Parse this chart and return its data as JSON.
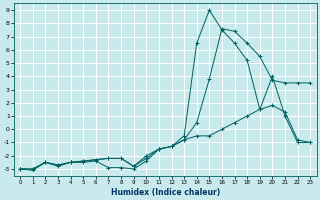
{
  "xlabel": "Humidex (Indice chaleur)",
  "xlim": [
    -0.5,
    23.5
  ],
  "ylim": [
    -3.5,
    9.5
  ],
  "xticks": [
    0,
    1,
    2,
    3,
    4,
    5,
    6,
    7,
    8,
    9,
    10,
    11,
    12,
    13,
    14,
    15,
    16,
    17,
    18,
    19,
    20,
    21,
    22,
    23
  ],
  "yticks": [
    -3,
    -2,
    -1,
    0,
    1,
    2,
    3,
    4,
    5,
    6,
    7,
    8,
    9
  ],
  "background_color": "#c8eaec",
  "grid_color": "#ffffff",
  "line_color": "#006060",
  "line1_x": [
    0,
    1,
    2,
    3,
    4,
    5,
    6,
    7,
    8,
    9,
    10,
    11,
    12,
    13,
    14,
    15,
    16,
    17,
    18,
    19,
    20,
    21,
    22,
    23
  ],
  "line1_y": [
    -3.0,
    -3.1,
    -2.5,
    -2.8,
    -2.5,
    -2.5,
    -2.4,
    -2.9,
    -2.9,
    -3.0,
    -2.4,
    -1.5,
    -1.3,
    -0.5,
    6.5,
    9.0,
    7.5,
    6.5,
    5.2,
    1.5,
    4.0,
    1.0,
    -1.0,
    -1.0
  ],
  "line2_x": [
    0,
    1,
    2,
    3,
    4,
    5,
    6,
    7,
    8,
    9,
    10,
    11,
    12,
    13,
    14,
    15,
    16,
    17,
    18,
    19,
    20,
    21,
    22,
    23
  ],
  "line2_y": [
    -3.0,
    -3.0,
    -2.5,
    -2.7,
    -2.5,
    -2.4,
    -2.3,
    -2.2,
    -2.2,
    -2.8,
    -2.2,
    -1.5,
    -1.3,
    -0.8,
    0.5,
    3.8,
    7.6,
    7.4,
    6.5,
    5.5,
    3.7,
    3.5,
    3.5,
    3.5
  ],
  "line3_x": [
    0,
    1,
    2,
    3,
    4,
    5,
    6,
    7,
    8,
    9,
    10,
    11,
    12,
    13,
    14,
    15,
    16,
    17,
    18,
    19,
    20,
    21,
    22,
    23
  ],
  "line3_y": [
    -3.0,
    -3.0,
    -2.5,
    -2.7,
    -2.5,
    -2.4,
    -2.3,
    -2.2,
    -2.2,
    -2.8,
    -2.0,
    -1.5,
    -1.3,
    -0.8,
    -0.5,
    -0.5,
    0.0,
    0.5,
    1.0,
    1.5,
    1.8,
    1.3,
    -0.8,
    -1.0
  ]
}
